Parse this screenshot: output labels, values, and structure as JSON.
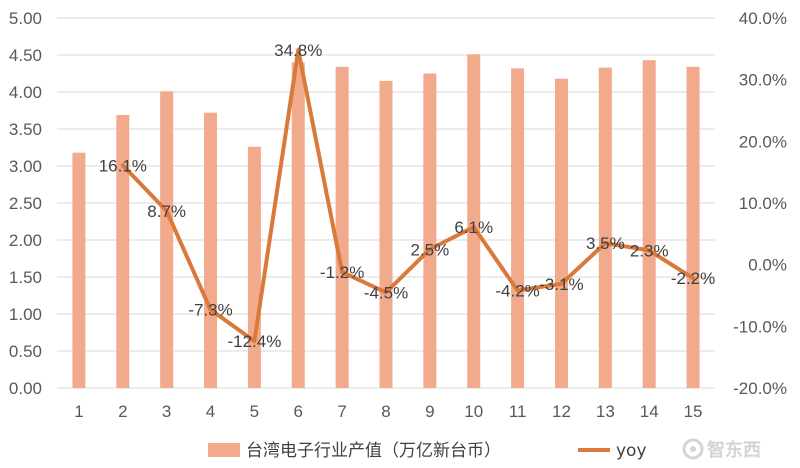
{
  "chart_data": {
    "type": "bar",
    "categories": [
      "1",
      "2",
      "3",
      "4",
      "5",
      "6",
      "7",
      "8",
      "9",
      "10",
      "11",
      "12",
      "13",
      "14",
      "15"
    ],
    "series": [
      {
        "name": "台湾电子行业产值（万亿新台币）",
        "type": "bar",
        "axis": "left",
        "color": "#f2aa8c",
        "values": [
          3.18,
          3.69,
          4.01,
          3.72,
          3.26,
          4.4,
          4.34,
          4.15,
          4.25,
          4.51,
          4.32,
          4.18,
          4.33,
          4.43,
          4.34
        ]
      },
      {
        "name": "yoy",
        "type": "line",
        "axis": "right",
        "color": "#d97a3a",
        "values": [
          null,
          16.1,
          8.7,
          -7.3,
          -12.4,
          34.8,
          -1.2,
          -4.5,
          2.5,
          6.1,
          -4.2,
          -3.1,
          3.5,
          2.3,
          -2.2
        ],
        "labels": [
          "",
          "16.1%",
          "8.7%",
          "-7.3%",
          "-12.4%",
          "34.8%",
          "-1.2%",
          "-4.5%",
          "2.5%",
          "6.1%",
          "-4.2%",
          "-3.1%",
          "3.5%",
          "2.3%",
          "-2.2%"
        ]
      }
    ],
    "y_left": {
      "ylim": [
        0,
        5
      ],
      "ticks": [
        0,
        0.5,
        1,
        1.5,
        2,
        2.5,
        3,
        3.5,
        4,
        4.5,
        5
      ],
      "tick_labels": [
        "0.00",
        "0.50",
        "1.00",
        "1.50",
        "2.00",
        "2.50",
        "3.00",
        "3.50",
        "4.00",
        "4.50",
        "5.00"
      ]
    },
    "y_right": {
      "ylim": [
        -20,
        40
      ],
      "ticks": [
        -20,
        -10,
        0,
        10,
        20,
        30,
        40
      ],
      "tick_labels": [
        "-20.0%",
        "-10.0%",
        "0.0%",
        "10.0%",
        "20.0%",
        "30.0%",
        "40.0%"
      ]
    },
    "grid": true,
    "legend": "bottom-center",
    "title": "",
    "xlabel": "",
    "ylabel": ""
  },
  "watermark": {
    "text": "智东西",
    "icon": "gear-icon"
  }
}
